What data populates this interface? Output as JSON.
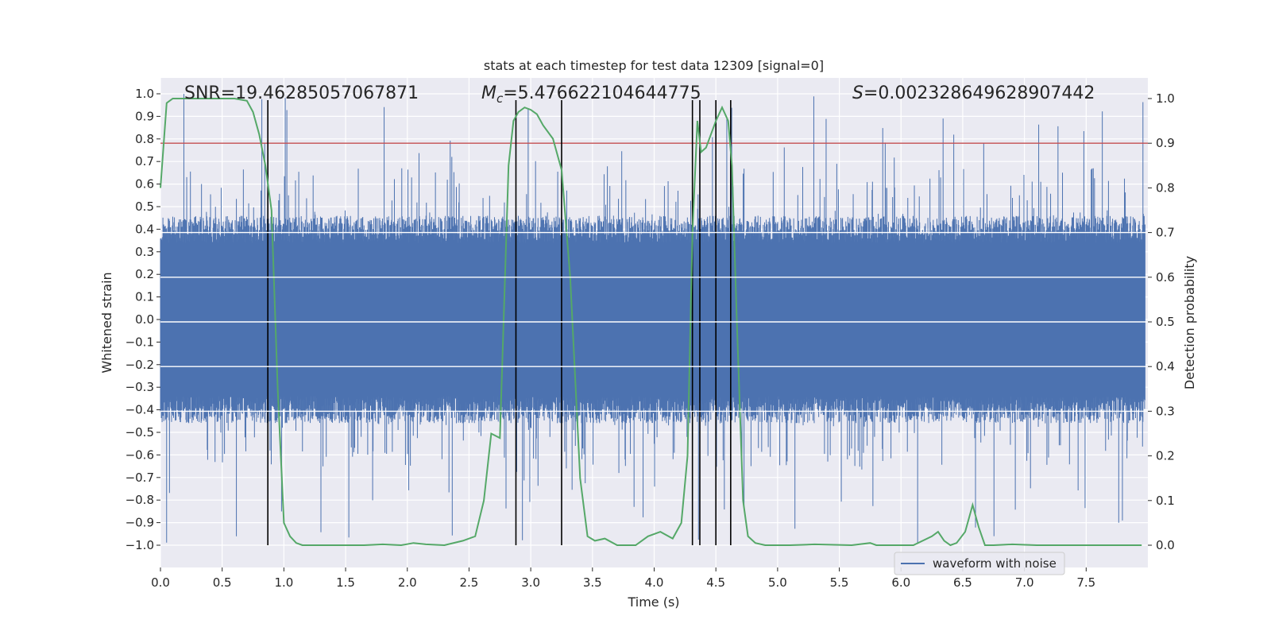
{
  "chart_data": {
    "type": "line",
    "title": "stats at each timestep for test data 12309 [signal=0]",
    "xlabel": "Time (s)",
    "ylabel_left": "Whitened strain",
    "ylabel_right": "Detection probability",
    "xlim": [
      0.0,
      8.0
    ],
    "ylim_left": [
      -1.05,
      1.05
    ],
    "ylim_right": [
      -0.05,
      1.05
    ],
    "x_ticks": [
      "0.0",
      "0.5",
      "1.0",
      "1.5",
      "2.0",
      "2.5",
      "3.0",
      "3.5",
      "4.0",
      "4.5",
      "5.0",
      "5.5",
      "6.0",
      "6.5",
      "7.0",
      "7.5"
    ],
    "y_left_ticks": [
      "1.0",
      "0.9",
      "0.8",
      "0.7",
      "0.6",
      "0.5",
      "0.4",
      "0.3",
      "0.2",
      "0.1",
      "0.0",
      "−0.1",
      "−0.2",
      "−0.3",
      "−0.4",
      "−0.5",
      "−0.6",
      "−0.7",
      "−0.8",
      "−0.9",
      "−1.0"
    ],
    "y_right_ticks": [
      "1.0",
      "0.9",
      "0.8",
      "0.7",
      "0.6",
      "0.5",
      "0.4",
      "0.3",
      "0.2",
      "0.1",
      "0.0"
    ],
    "annotations": {
      "snr": "SNR=19.46285057067871",
      "mc_symbol": "M",
      "mc_sub": "c",
      "mc_value": "=5.476622104644775",
      "s_symbol": "S",
      "s_value": "=0.002328649628907442"
    },
    "legend": {
      "label": "waveform with noise",
      "location": "lower-right"
    },
    "threshold": {
      "value": 0.9,
      "axis": "right",
      "color": "#c44e52"
    },
    "vlines_x": [
      0.87,
      2.88,
      3.25,
      4.31,
      4.37,
      4.5,
      4.62
    ],
    "vline_range_left": [
      -1.0,
      1.0
    ],
    "waveform": {
      "name": "waveform with noise",
      "color": "#4c72b0",
      "typical_amplitude": 0.4,
      "peak_abs_amplitude": 1.0
    },
    "probability": {
      "name": "detection probability",
      "color": "#55a868",
      "x": [
        0.0,
        0.05,
        0.1,
        0.2,
        0.3,
        0.4,
        0.5,
        0.6,
        0.7,
        0.75,
        0.8,
        0.85,
        0.9,
        0.95,
        1.0,
        1.05,
        1.1,
        1.15,
        1.25,
        1.35,
        1.5,
        1.65,
        1.8,
        1.95,
        2.05,
        2.15,
        2.3,
        2.45,
        2.55,
        2.62,
        2.68,
        2.75,
        2.82,
        2.86,
        2.9,
        2.95,
        3.0,
        3.05,
        3.1,
        3.18,
        3.25,
        3.32,
        3.4,
        3.46,
        3.52,
        3.6,
        3.7,
        3.85,
        3.95,
        4.05,
        4.15,
        4.22,
        4.27,
        4.31,
        4.35,
        4.38,
        4.42,
        4.5,
        4.55,
        4.6,
        4.63,
        4.67,
        4.72,
        4.76,
        4.82,
        4.9,
        5.1,
        5.3,
        5.6,
        5.75,
        5.8,
        5.9,
        6.1,
        6.25,
        6.3,
        6.35,
        6.4,
        6.45,
        6.52,
        6.58,
        6.63,
        6.68,
        6.75,
        6.9,
        7.1,
        7.5,
        7.95
      ],
      "y": [
        0.8,
        0.99,
        1.0,
        1.0,
        1.0,
        1.0,
        1.0,
        1.0,
        0.995,
        0.97,
        0.92,
        0.85,
        0.75,
        0.35,
        0.05,
        0.02,
        0.005,
        0.0,
        0.0,
        0.0,
        0.0,
        0.0,
        0.002,
        0.0,
        0.005,
        0.002,
        0.0,
        0.01,
        0.02,
        0.1,
        0.25,
        0.24,
        0.85,
        0.95,
        0.97,
        0.98,
        0.975,
        0.965,
        0.94,
        0.91,
        0.84,
        0.6,
        0.15,
        0.02,
        0.01,
        0.015,
        0.0,
        0.0,
        0.02,
        0.03,
        0.015,
        0.05,
        0.2,
        0.7,
        0.95,
        0.88,
        0.89,
        0.95,
        0.98,
        0.95,
        0.85,
        0.5,
        0.1,
        0.02,
        0.005,
        0.0,
        0.0,
        0.002,
        0.0,
        0.005,
        0.0,
        0.0,
        0.0,
        0.02,
        0.03,
        0.01,
        0.0,
        0.005,
        0.03,
        0.09,
        0.04,
        0.0,
        0.0,
        0.002,
        0.0,
        0.0,
        0.0
      ]
    }
  }
}
